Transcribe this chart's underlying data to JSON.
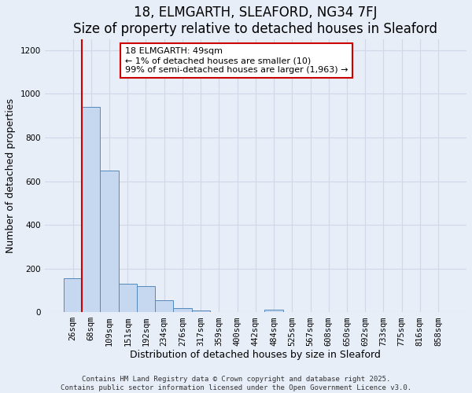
{
  "title": "18, ELMGARTH, SLEAFORD, NG34 7FJ",
  "subtitle": "Size of property relative to detached houses in Sleaford",
  "xlabel": "Distribution of detached houses by size in Sleaford",
  "ylabel": "Number of detached properties",
  "categories": [
    "26sqm",
    "68sqm",
    "109sqm",
    "151sqm",
    "192sqm",
    "234sqm",
    "276sqm",
    "317sqm",
    "359sqm",
    "400sqm",
    "442sqm",
    "484sqm",
    "525sqm",
    "567sqm",
    "608sqm",
    "650sqm",
    "692sqm",
    "733sqm",
    "775sqm",
    "816sqm",
    "858sqm"
  ],
  "values": [
    155,
    940,
    650,
    130,
    120,
    55,
    20,
    8,
    0,
    0,
    0,
    10,
    0,
    0,
    0,
    0,
    0,
    0,
    0,
    0,
    0
  ],
  "bar_color": "#c5d8f0",
  "bar_edge_color": "#5588bb",
  "bar_edge_width": 0.7,
  "vline_color": "#cc0000",
  "annotation_line1": "18 ELMGARTH: 49sqm",
  "annotation_line2": "← 1% of detached houses are smaller (10)",
  "annotation_line3": "99% of semi-detached houses are larger (1,963) →",
  "annotation_box_facecolor": "#ffffff",
  "annotation_box_edgecolor": "#cc0000",
  "ylim": [
    0,
    1250
  ],
  "yticks": [
    0,
    200,
    400,
    600,
    800,
    1000,
    1200
  ],
  "background_color": "#e8eef8",
  "grid_color": "#d0d8e8",
  "footer_text": "Contains HM Land Registry data © Crown copyright and database right 2025.\nContains public sector information licensed under the Open Government Licence v3.0.",
  "title_fontsize": 12,
  "subtitle_fontsize": 10,
  "xlabel_fontsize": 9,
  "ylabel_fontsize": 9,
  "tick_fontsize": 7.5,
  "annotation_fontsize": 8
}
